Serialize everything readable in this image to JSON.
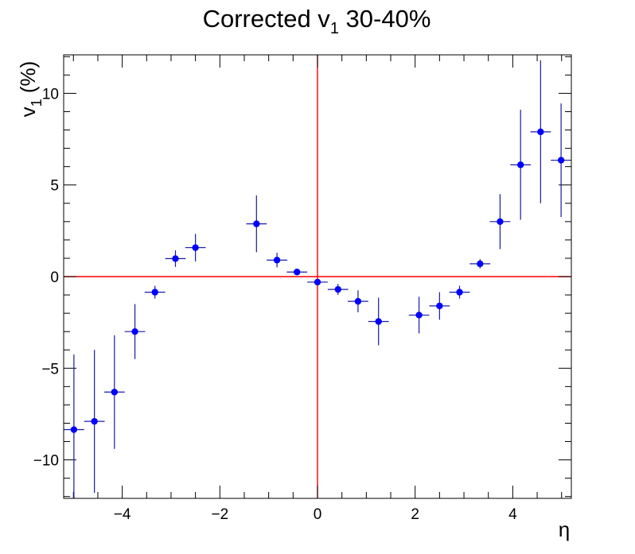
{
  "chart_data": {
    "type": "scatter",
    "title": "Corrected v",
    "title_sub": "1",
    "title_tail": " 30-40%",
    "ylabel": "v",
    "ylabel_sub": "1",
    "ylabel_tail": " (%)",
    "xlabel": "η",
    "xlim": [
      -5.2,
      5.2
    ],
    "ylim": [
      -12.1,
      12.1
    ],
    "x_ticks": [
      -4,
      -2,
      0,
      2,
      4
    ],
    "x_tick_labels": [
      "−4",
      "−2",
      "0",
      "2",
      "4"
    ],
    "y_ticks": [
      -10,
      -5,
      0,
      5,
      10
    ],
    "y_tick_labels": [
      "−10",
      "−5",
      "0",
      "5",
      "10"
    ],
    "grid": false,
    "colors": {
      "points": "#0000ff",
      "error_bars": "#1a1aa6",
      "reference_lines": "#ff0000"
    },
    "reference_lines": {
      "x": 0,
      "y": 0
    },
    "points": [
      {
        "x": -4.99,
        "y": -8.35,
        "xerr": 0.21,
        "yerr": 4.1
      },
      {
        "x": -4.57,
        "y": -7.9,
        "xerr": 0.21,
        "yerr": 3.9
      },
      {
        "x": -4.16,
        "y": -6.3,
        "xerr": 0.21,
        "yerr": 3.1
      },
      {
        "x": -3.74,
        "y": -3.0,
        "xerr": 0.21,
        "yerr": 1.5
      },
      {
        "x": -3.33,
        "y": -0.85,
        "xerr": 0.21,
        "yerr": 0.35
      },
      {
        "x": -2.91,
        "y": 0.98,
        "xerr": 0.21,
        "yerr": 0.45
      },
      {
        "x": -2.5,
        "y": 1.58,
        "xerr": 0.21,
        "yerr": 0.75
      },
      {
        "x": -1.25,
        "y": 2.88,
        "xerr": 0.21,
        "yerr": 1.55
      },
      {
        "x": -0.83,
        "y": 0.9,
        "xerr": 0.21,
        "yerr": 0.4
      },
      {
        "x": -0.42,
        "y": 0.25,
        "xerr": 0.21,
        "yerr": 0.12
      },
      {
        "x": 0.0,
        "y": -0.3,
        "xerr": 0.21,
        "yerr": 0.15
      },
      {
        "x": 0.42,
        "y": -0.7,
        "xerr": 0.21,
        "yerr": 0.3
      },
      {
        "x": 0.83,
        "y": -1.35,
        "xerr": 0.21,
        "yerr": 0.6
      },
      {
        "x": 1.25,
        "y": -2.45,
        "xerr": 0.21,
        "yerr": 1.3
      },
      {
        "x": 2.08,
        "y": -2.1,
        "xerr": 0.21,
        "yerr": 1.0
      },
      {
        "x": 2.5,
        "y": -1.6,
        "xerr": 0.21,
        "yerr": 0.75
      },
      {
        "x": 2.91,
        "y": -0.85,
        "xerr": 0.21,
        "yerr": 0.35
      },
      {
        "x": 3.33,
        "y": 0.7,
        "xerr": 0.21,
        "yerr": 0.25
      },
      {
        "x": 3.74,
        "y": 3.0,
        "xerr": 0.21,
        "yerr": 1.5
      },
      {
        "x": 4.16,
        "y": 6.1,
        "xerr": 0.21,
        "yerr": 3.0
      },
      {
        "x": 4.57,
        "y": 7.9,
        "xerr": 0.21,
        "yerr": 3.9
      },
      {
        "x": 4.99,
        "y": 6.35,
        "xerr": 0.21,
        "yerr": 3.1
      }
    ]
  }
}
